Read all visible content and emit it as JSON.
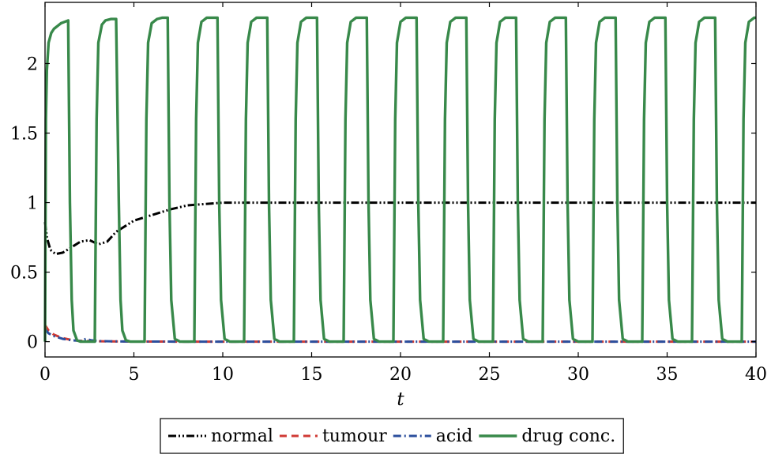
{
  "chart_data": {
    "type": "line",
    "title": "",
    "xlabel": "t",
    "ylabel": "",
    "xlim": [
      0,
      40
    ],
    "ylim": [
      -0.11,
      2.44
    ],
    "xticks": [
      0,
      5,
      10,
      15,
      20,
      25,
      30,
      35,
      40
    ],
    "yticks": [
      0,
      0.5,
      1,
      1.5,
      2
    ],
    "xtick_labels": [
      "0",
      "5",
      "10",
      "15",
      "20",
      "25",
      "30",
      "35",
      "40"
    ],
    "ytick_labels": [
      "0",
      "0.5",
      "1",
      "1.5",
      "2"
    ],
    "grid": false,
    "legend_position": "bottom-center",
    "series": [
      {
        "name": "normal",
        "color": "#000000",
        "style": "dash-dot-dot",
        "x": [
          0,
          0.1,
          0.3,
          0.6,
          1,
          1.5,
          2,
          2.5,
          3,
          3.5,
          4,
          5,
          6,
          7,
          8,
          9,
          10,
          12,
          15,
          20,
          25,
          30,
          35,
          40
        ],
        "y": [
          0.86,
          0.75,
          0.66,
          0.63,
          0.64,
          0.68,
          0.72,
          0.73,
          0.7,
          0.72,
          0.79,
          0.87,
          0.91,
          0.95,
          0.98,
          0.99,
          1.0,
          1.0,
          1.0,
          1.0,
          1.0,
          1.0,
          1.0,
          1.0
        ]
      },
      {
        "name": "tumour",
        "color": "#d03a34",
        "style": "dashed",
        "x": [
          0,
          0.2,
          0.5,
          1,
          1.5,
          2,
          3,
          4,
          5,
          6,
          8,
          10,
          15,
          20,
          25,
          30,
          35,
          40
        ],
        "y": [
          0.12,
          0.08,
          0.05,
          0.025,
          0.012,
          0.006,
          0.003,
          0.0015,
          0.001,
          0.0005,
          0.0002,
          0.0001,
          0,
          0,
          0,
          0,
          0,
          0
        ]
      },
      {
        "name": "acid",
        "color": "#2b4e9c",
        "style": "dash-dot",
        "x": [
          0,
          0.2,
          0.5,
          1,
          1.5,
          2,
          2.3,
          2.6,
          3,
          4,
          5,
          6,
          8,
          10,
          15,
          20,
          25,
          30,
          35,
          40
        ],
        "y": [
          0.09,
          0.06,
          0.04,
          0.02,
          0.01,
          0.006,
          0.02,
          0.01,
          0.004,
          0.002,
          0.001,
          0.0005,
          0.0002,
          0.0001,
          0,
          0,
          0,
          0,
          0,
          0
        ]
      },
      {
        "name": "drug conc.",
        "color": "#38894a",
        "style": "solid",
        "x": [
          0,
          0.05,
          0.1,
          0.2,
          0.35,
          0.5,
          0.7,
          0.9,
          1.1,
          1.3,
          1.4,
          1.5,
          1.6,
          1.8,
          2.0,
          2.8,
          2.9,
          3.0,
          3.2,
          3.4,
          3.7,
          4.0,
          4.15,
          4.25,
          4.35,
          4.55,
          4.8,
          5.6,
          5.7,
          5.8,
          6.0,
          6.3,
          6.6,
          6.9,
          7.0,
          7.1,
          7.3,
          7.6,
          8.4,
          8.5,
          8.6,
          8.8,
          9.1,
          9.4,
          9.7,
          9.8,
          9.9,
          10.1,
          10.4,
          11.2,
          11.3,
          11.4,
          11.6,
          11.9,
          12.2,
          12.5,
          12.6,
          12.7,
          12.9,
          13.2,
          14.0,
          14.1,
          14.2,
          14.4,
          14.7,
          15.0,
          15.3,
          15.4,
          15.5,
          15.7,
          16.0,
          16.8,
          16.9,
          17.0,
          17.2,
          17.5,
          17.8,
          18.1,
          18.2,
          18.3,
          18.5,
          18.8,
          19.6,
          19.7,
          19.8,
          20.0,
          20.3,
          20.6,
          20.9,
          21.0,
          21.1,
          21.3,
          21.6,
          22.4,
          22.5,
          22.6,
          22.8,
          23.1,
          23.4,
          23.7,
          23.8,
          23.9,
          24.1,
          24.4,
          25.2,
          25.3,
          25.4,
          25.6,
          25.9,
          26.2,
          26.5,
          26.6,
          26.7,
          26.9,
          27.2,
          28.0,
          28.1,
          28.2,
          28.4,
          28.7,
          29.0,
          29.3,
          29.4,
          29.5,
          29.7,
          30.0,
          30.8,
          30.9,
          31.0,
          31.2,
          31.5,
          31.8,
          32.1,
          32.2,
          32.3,
          32.5,
          32.8,
          33.6,
          33.7,
          33.8,
          34.0,
          34.3,
          34.6,
          34.9,
          35.0,
          35.1,
          35.3,
          35.6,
          36.4,
          36.5,
          36.6,
          36.8,
          37.1,
          37.4,
          37.7,
          37.8,
          37.9,
          38.1,
          38.4,
          39.2,
          39.3,
          39.4,
          39.6,
          39.9,
          40.0
        ],
        "y": [
          0,
          1.6,
          1.95,
          2.15,
          2.22,
          2.25,
          2.27,
          2.29,
          2.3,
          2.31,
          1.0,
          0.3,
          0.08,
          0.01,
          0,
          0,
          1.6,
          2.15,
          2.28,
          2.31,
          2.32,
          2.32,
          1.0,
          0.3,
          0.08,
          0.01,
          0,
          0,
          1.6,
          2.15,
          2.29,
          2.32,
          2.33,
          2.33,
          1.0,
          0.3,
          0.02,
          0,
          0,
          1.6,
          2.15,
          2.3,
          2.33,
          2.33,
          2.33,
          1.0,
          0.3,
          0.02,
          0,
          0,
          1.6,
          2.15,
          2.3,
          2.33,
          2.33,
          2.33,
          1.0,
          0.3,
          0.02,
          0,
          0,
          1.6,
          2.15,
          2.3,
          2.33,
          2.33,
          2.33,
          1.0,
          0.3,
          0.02,
          0,
          0,
          1.6,
          2.15,
          2.3,
          2.33,
          2.33,
          2.33,
          1.0,
          0.3,
          0.02,
          0,
          0,
          1.6,
          2.15,
          2.3,
          2.33,
          2.33,
          2.33,
          1.0,
          0.3,
          0.02,
          0,
          0,
          1.6,
          2.15,
          2.3,
          2.33,
          2.33,
          2.33,
          1.0,
          0.3,
          0.02,
          0,
          0,
          1.6,
          2.15,
          2.3,
          2.33,
          2.33,
          2.33,
          1.0,
          0.3,
          0.02,
          0,
          0,
          1.6,
          2.15,
          2.3,
          2.33,
          2.33,
          2.33,
          1.0,
          0.3,
          0.02,
          0,
          0,
          1.6,
          2.15,
          2.3,
          2.33,
          2.33,
          2.33,
          1.0,
          0.3,
          0.02,
          0,
          0,
          1.6,
          2.15,
          2.3,
          2.33,
          2.33,
          2.33,
          1.0,
          0.3,
          0.02,
          0,
          0,
          1.6,
          2.15,
          2.3,
          2.33,
          2.33,
          2.33,
          1.0,
          0.3,
          0.02,
          0,
          0,
          1.6,
          2.15,
          2.3,
          2.33,
          2.33
        ]
      }
    ]
  }
}
